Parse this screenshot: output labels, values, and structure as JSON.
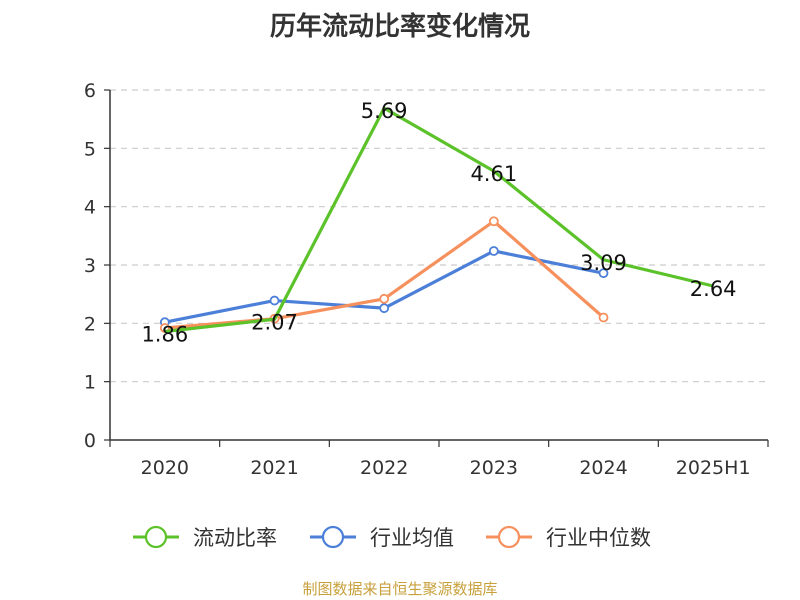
{
  "title": "历年流动比率变化情况",
  "source": "制图数据来自恒生聚源数据库",
  "chart_data": {
    "type": "line",
    "categories": [
      "2020",
      "2021",
      "2022",
      "2023",
      "2024",
      "2025H1"
    ],
    "ylim": [
      0,
      6
    ],
    "yticks": [
      0,
      1,
      2,
      3,
      4,
      5,
      6
    ],
    "grid": true,
    "legend_position": "bottom",
    "series": [
      {
        "name": "流动比率",
        "color": "#5bc22a",
        "values": [
          1.86,
          2.07,
          5.69,
          4.61,
          3.09,
          2.64
        ],
        "labels": [
          "1.86",
          "2.07",
          "5.69",
          "4.61",
          "3.09",
          "2.64"
        ],
        "show_markers": false
      },
      {
        "name": "行业均值",
        "color": "#4b7fd8",
        "values": [
          2.02,
          2.39,
          2.26,
          3.24,
          2.86,
          null
        ],
        "show_markers": true
      },
      {
        "name": "行业中位数",
        "color": "#f6905d",
        "values": [
          1.92,
          2.08,
          2.42,
          3.75,
          2.1,
          null
        ],
        "show_markers": true
      }
    ]
  }
}
